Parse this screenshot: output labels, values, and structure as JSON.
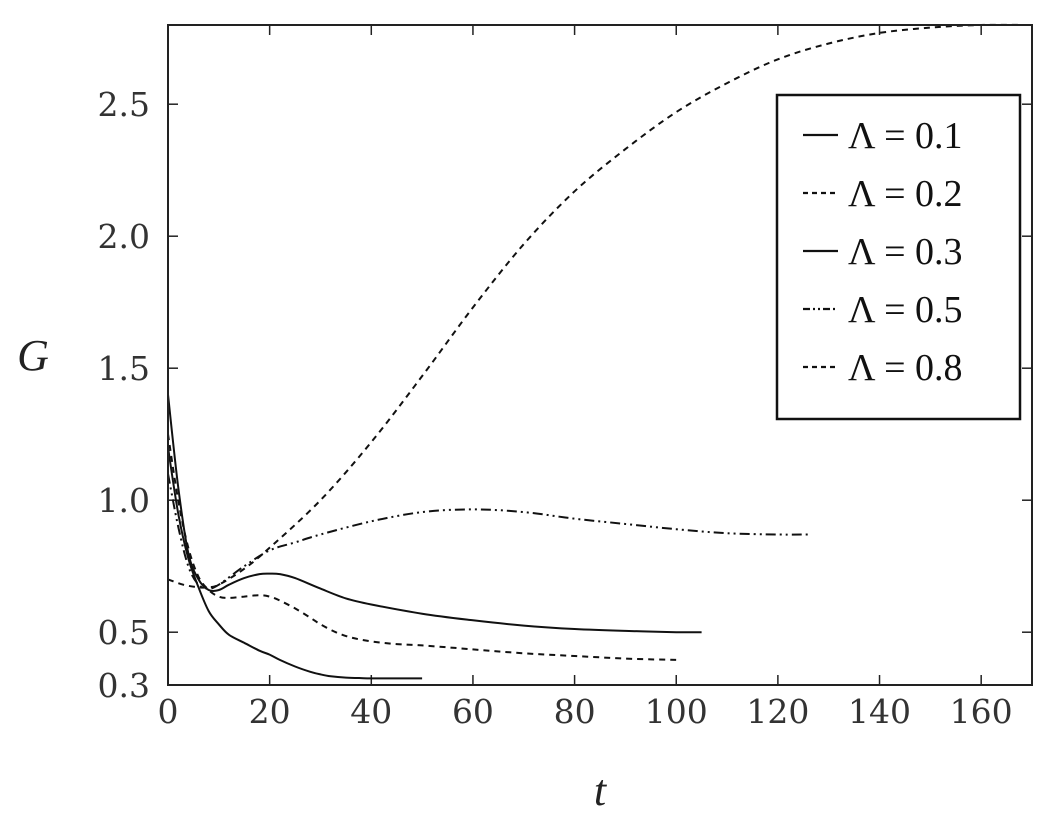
{
  "chart_data": {
    "type": "line",
    "xlabel": "t",
    "ylabel": "G",
    "xlim": [
      0,
      170
    ],
    "ylim": [
      0.3,
      2.8
    ],
    "xticks": [
      0,
      20,
      40,
      60,
      80,
      100,
      120,
      140,
      160
    ],
    "yticks": [
      0.3,
      0.5,
      1.0,
      1.5,
      2.0,
      2.5
    ],
    "ytick_labels": [
      "0.3",
      "0.5",
      "1.0",
      "1.5",
      "2.0",
      "2.5"
    ],
    "grid": false,
    "legend_position": "top-right",
    "series": [
      {
        "name": "Λ = 0.1",
        "style": "solid",
        "color": "#111111",
        "x": [
          0,
          2,
          4,
          6,
          8,
          10,
          12,
          15,
          18,
          20,
          22,
          25,
          28,
          30,
          32,
          35,
          38,
          40,
          45,
          50
        ],
        "y": [
          1.2,
          0.95,
          0.78,
          0.67,
          0.58,
          0.53,
          0.49,
          0.46,
          0.43,
          0.415,
          0.395,
          0.37,
          0.35,
          0.34,
          0.333,
          0.328,
          0.326,
          0.325,
          0.325,
          0.325
        ]
      },
      {
        "name": "Λ = 0.2",
        "style": "dashed",
        "color": "#111111",
        "x": [
          0,
          2,
          4,
          6,
          8,
          10,
          12,
          15,
          18,
          20,
          22,
          25,
          28,
          30,
          33,
          36,
          40,
          45,
          50,
          60,
          70,
          80,
          90,
          100
        ],
        "y": [
          1.25,
          1.0,
          0.82,
          0.71,
          0.66,
          0.635,
          0.63,
          0.635,
          0.64,
          0.635,
          0.62,
          0.59,
          0.555,
          0.53,
          0.5,
          0.48,
          0.465,
          0.455,
          0.45,
          0.435,
          0.42,
          0.41,
          0.4,
          0.395
        ]
      },
      {
        "name": "Λ = 0.3",
        "style": "solid",
        "color": "#111111",
        "x": [
          0,
          2,
          4,
          6,
          8,
          10,
          12,
          15,
          18,
          20,
          22,
          25,
          30,
          35,
          40,
          50,
          60,
          70,
          80,
          90,
          100,
          105
        ],
        "y": [
          1.4,
          1.05,
          0.8,
          0.7,
          0.66,
          0.66,
          0.68,
          0.705,
          0.72,
          0.722,
          0.72,
          0.705,
          0.665,
          0.628,
          0.605,
          0.57,
          0.545,
          0.525,
          0.512,
          0.505,
          0.5,
          0.5
        ]
      },
      {
        "name": "Λ = 0.5",
        "style": "dash-dot-dot",
        "color": "#111111",
        "x": [
          0,
          2,
          4,
          6,
          8,
          10,
          15,
          20,
          25,
          30,
          40,
          50,
          60,
          70,
          80,
          90,
          100,
          110,
          120,
          126
        ],
        "y": [
          1.1,
          0.9,
          0.75,
          0.68,
          0.665,
          0.68,
          0.75,
          0.81,
          0.84,
          0.87,
          0.92,
          0.955,
          0.965,
          0.955,
          0.93,
          0.91,
          0.89,
          0.875,
          0.87,
          0.87
        ]
      },
      {
        "name": "Λ = 0.8",
        "style": "dashed",
        "color": "#111111",
        "x": [
          0,
          3,
          6,
          8,
          10,
          15,
          20,
          30,
          40,
          50,
          60,
          70,
          80,
          90,
          100,
          110,
          120,
          130,
          140,
          150,
          160,
          170
        ],
        "y": [
          0.7,
          0.68,
          0.67,
          0.67,
          0.68,
          0.74,
          0.82,
          1.0,
          1.22,
          1.47,
          1.73,
          1.97,
          2.17,
          2.33,
          2.47,
          2.58,
          2.67,
          2.73,
          2.77,
          2.79,
          2.8,
          2.8
        ]
      }
    ]
  }
}
